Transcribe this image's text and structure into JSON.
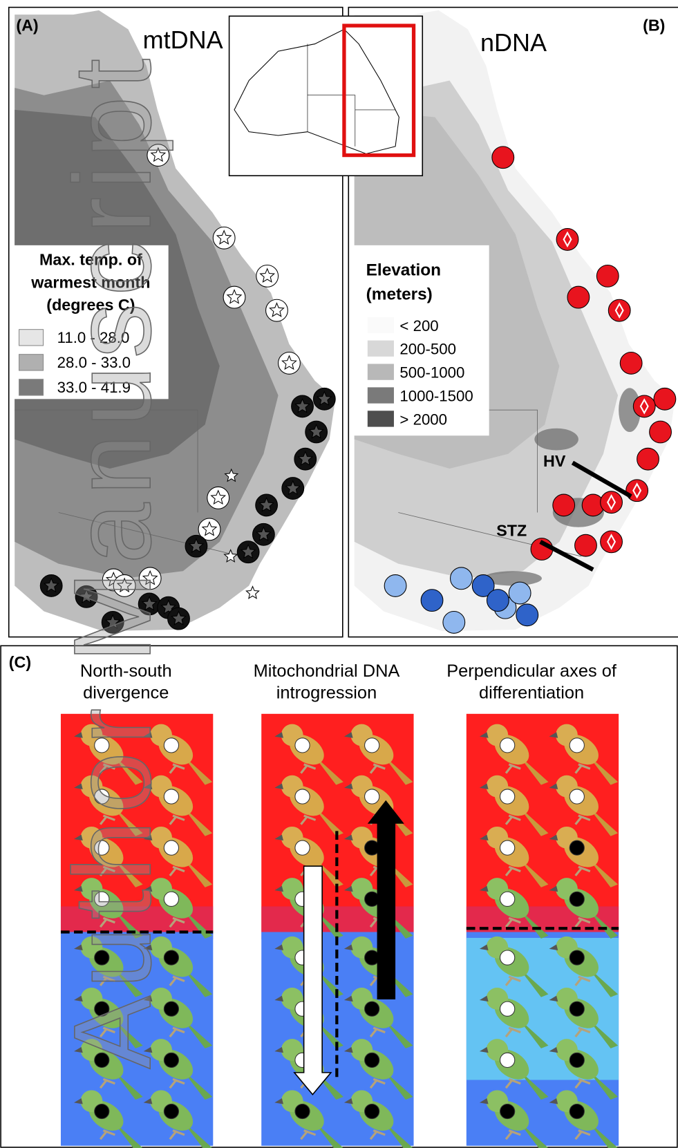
{
  "figure": {
    "panel_a": {
      "label": "(A)",
      "title": "mtDNA",
      "legend": {
        "title": [
          "Max. temp. of",
          "warmest month",
          "(degrees C)"
        ],
        "items": [
          "11.0 - 28.0",
          "28.0 - 33.0",
          "33.0 - 41.9"
        ]
      }
    },
    "panel_b": {
      "label": "(B)",
      "title": "nDNA",
      "legend": {
        "title": [
          "Elevation",
          "(meters)"
        ],
        "items": [
          "< 200",
          "200-500",
          "500-1000",
          "1000-1500",
          "> 2000"
        ]
      },
      "annotations": [
        "HV",
        "STZ"
      ]
    },
    "panel_c": {
      "label": "(C)",
      "columns": [
        {
          "title": [
            "North-south",
            "divergence"
          ]
        },
        {
          "title": [
            "Mitochondrial DNA",
            "introgression"
          ]
        },
        {
          "title": [
            "Perpendicular axes of",
            "differentiation"
          ]
        }
      ]
    },
    "watermark": "Author Manuscript"
  }
}
